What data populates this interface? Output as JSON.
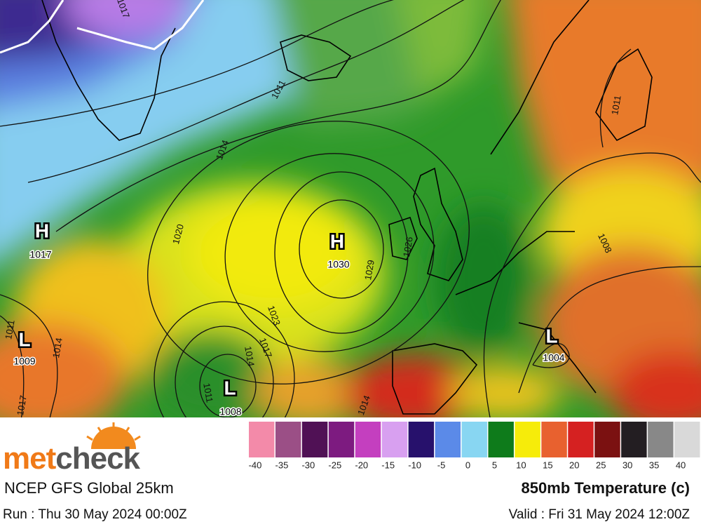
{
  "map": {
    "pressure_centers": [
      {
        "letter": "H",
        "value": 1017
      },
      {
        "letter": "L",
        "value": 1009
      },
      {
        "letter": "H",
        "value": 1030
      },
      {
        "letter": "L",
        "value": 1008
      },
      {
        "letter": "L",
        "value": 1004
      }
    ],
    "isobar_labels": [
      1017,
      1011,
      1014,
      1020,
      1023,
      1029,
      1026,
      1014,
      1017,
      1011,
      1014,
      1011,
      1017,
      1014,
      1008,
      1011
    ]
  },
  "legend": {
    "ticks": [
      -40,
      -35,
      -30,
      -25,
      -20,
      -15,
      -10,
      -5,
      0,
      5,
      10,
      15,
      20,
      25,
      30,
      35,
      40
    ],
    "colors": [
      "#f38aa9",
      "#9b4f86",
      "#501155",
      "#7d1b80",
      "#c43fbf",
      "#d8a0f0",
      "#27116c",
      "#5b8ae8",
      "#88d6f2",
      "#0e7b1b",
      "#f6ec0a",
      "#e8612f",
      "#d52121",
      "#7b1111",
      "#231e22",
      "#888888",
      "#d9d9d9"
    ]
  },
  "footer": {
    "brand_left": "met",
    "brand_right": "check",
    "model": "NCEP GFS Global 25km",
    "title": "850mb Temperature (c)",
    "run": "Run : Thu 30 May 2024 00:00Z",
    "valid": "Valid : Fri 31 May 2024 12:00Z"
  }
}
